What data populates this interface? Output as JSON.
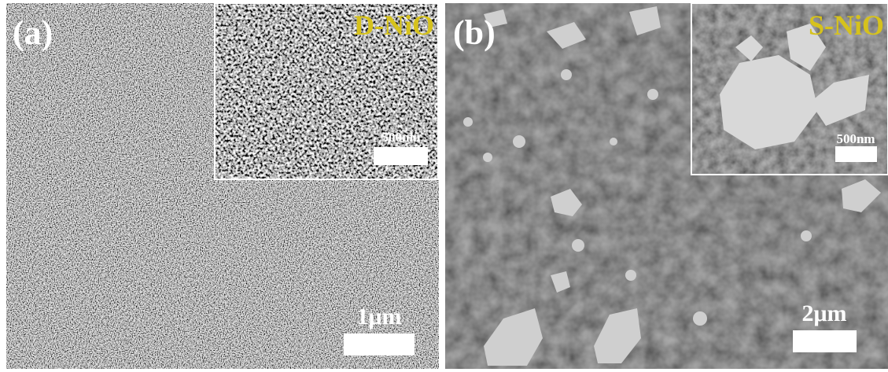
{
  "panels": [
    {
      "label": "(a)",
      "scale_bar": "1μm",
      "inset": {
        "title": "D-NiO",
        "scale_bar": "500nm"
      }
    },
    {
      "label": "(b)",
      "scale_bar": "2μm",
      "inset": {
        "title": "S-NiO",
        "scale_bar": "500nm"
      }
    }
  ]
}
